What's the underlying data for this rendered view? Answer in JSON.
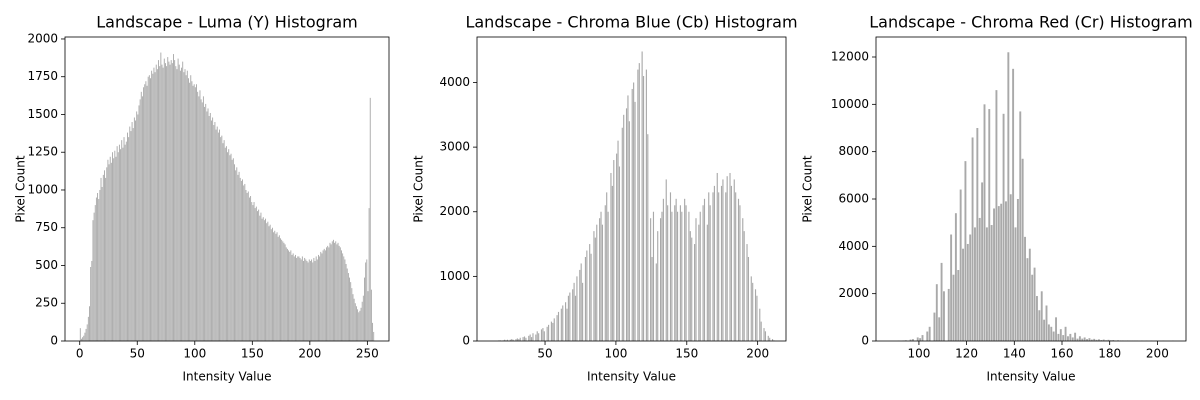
{
  "chart_data": [
    {
      "type": "histogram",
      "title": "Landscape - Luma (Y) Histogram",
      "xlabel": "Intensity Value",
      "ylabel": "Pixel Count",
      "color": "#a9a9a9",
      "xlim": [
        -12.8,
        268.8
      ],
      "ylim": [
        0,
        2013
      ],
      "xticks": [
        0,
        50,
        100,
        150,
        200,
        250
      ],
      "yticks": [
        0,
        250,
        500,
        750,
        1000,
        1250,
        1500,
        1750,
        2000
      ],
      "bins": [
        0,
        1,
        2,
        3,
        4,
        5,
        6,
        7,
        8,
        9,
        10,
        11,
        12,
        13,
        14,
        15,
        16,
        17,
        18,
        19,
        20,
        21,
        22,
        23,
        24,
        25,
        26,
        27,
        28,
        29,
        30,
        31,
        32,
        33,
        34,
        35,
        36,
        37,
        38,
        39,
        40,
        41,
        42,
        43,
        44,
        45,
        46,
        47,
        48,
        49,
        50,
        51,
        52,
        53,
        54,
        55,
        56,
        57,
        58,
        59,
        60,
        61,
        62,
        63,
        64,
        65,
        66,
        67,
        68,
        69,
        70,
        71,
        72,
        73,
        74,
        75,
        76,
        77,
        78,
        79,
        80,
        81,
        82,
        83,
        84,
        85,
        86,
        87,
        88,
        89,
        90,
        91,
        92,
        93,
        94,
        95,
        96,
        97,
        98,
        99,
        100,
        101,
        102,
        103,
        104,
        105,
        106,
        107,
        108,
        109,
        110,
        111,
        112,
        113,
        114,
        115,
        116,
        117,
        118,
        119,
        120,
        121,
        122,
        123,
        124,
        125,
        126,
        127,
        128,
        129,
        130,
        131,
        132,
        133,
        134,
        135,
        136,
        137,
        138,
        139,
        140,
        141,
        142,
        143,
        144,
        145,
        146,
        147,
        148,
        149,
        150,
        151,
        152,
        153,
        154,
        155,
        156,
        157,
        158,
        159,
        160,
        161,
        162,
        163,
        164,
        165,
        166,
        167,
        168,
        169,
        170,
        171,
        172,
        173,
        174,
        175,
        176,
        177,
        178,
        179,
        180,
        181,
        182,
        183,
        184,
        185,
        186,
        187,
        188,
        189,
        190,
        191,
        192,
        193,
        194,
        195,
        196,
        197,
        198,
        199,
        200,
        201,
        202,
        203,
        204,
        205,
        206,
        207,
        208,
        209,
        210,
        211,
        212,
        213,
        214,
        215,
        216,
        217,
        218,
        219,
        220,
        221,
        222,
        223,
        224,
        225,
        226,
        227,
        228,
        229,
        230,
        231,
        232,
        233,
        234,
        235,
        236,
        237,
        238,
        239,
        240,
        241,
        242,
        243,
        244,
        245,
        246,
        247,
        248,
        249,
        250,
        251,
        252,
        253,
        254,
        255,
        256
      ],
      "values": [
        85,
        15,
        25,
        35,
        55,
        80,
        110,
        160,
        230,
        490,
        530,
        800,
        850,
        900,
        950,
        980,
        940,
        1000,
        1080,
        1020,
        1100,
        1130,
        1080,
        1150,
        1200,
        1170,
        1220,
        1180,
        1250,
        1210,
        1260,
        1220,
        1290,
        1250,
        1300,
        1270,
        1330,
        1280,
        1350,
        1300,
        1320,
        1380,
        1350,
        1420,
        1390,
        1450,
        1410,
        1480,
        1460,
        1520,
        1500,
        1560,
        1600,
        1650,
        1620,
        1680,
        1700,
        1720,
        1690,
        1750,
        1760,
        1740,
        1790,
        1770,
        1810,
        1780,
        1830,
        1800,
        1860,
        1820,
        1910,
        1830,
        1810,
        1870,
        1840,
        1820,
        1880,
        1850,
        1830,
        1860,
        1840,
        1900,
        1860,
        1820,
        1800,
        1870,
        1830,
        1790,
        1810,
        1850,
        1780,
        1800,
        1760,
        1790,
        1740,
        1710,
        1760,
        1720,
        1690,
        1700,
        1680,
        1700,
        1650,
        1620,
        1660,
        1600,
        1580,
        1620,
        1550,
        1570,
        1520,
        1540,
        1490,
        1510,
        1460,
        1480,
        1430,
        1450,
        1400,
        1420,
        1380,
        1400,
        1350,
        1360,
        1310,
        1330,
        1280,
        1290,
        1250,
        1270,
        1230,
        1240,
        1200,
        1210,
        1170,
        1130,
        1150,
        1100,
        1120,
        1080,
        1060,
        1070,
        1030,
        1040,
        1000,
        980,
        990,
        950,
        960,
        920,
        900,
        920,
        880,
        890,
        860,
        870,
        830,
        850,
        810,
        820,
        800,
        810,
        780,
        790,
        760,
        770,
        740,
        750,
        720,
        730,
        710,
        720,
        690,
        700,
        680,
        670,
        660,
        650,
        640,
        620,
        610,
        600,
        590,
        600,
        570,
        580,
        560,
        570,
        550,
        560,
        560,
        550,
        540,
        560,
        530,
        550,
        540,
        530,
        520,
        540,
        530,
        540,
        520,
        550,
        530,
        560,
        540,
        570,
        560,
        590,
        580,
        600,
        610,
        600,
        620,
        630,
        620,
        650,
        640,
        660,
        670,
        650,
        660,
        640,
        650,
        630,
        620,
        600,
        580,
        560,
        540,
        510,
        480,
        450,
        420,
        390,
        350,
        310,
        280,
        250,
        230,
        210,
        190,
        200,
        220,
        260,
        300,
        420,
        520,
        540,
        330,
        880,
        1610,
        340,
        120,
        60
      ]
    },
    {
      "type": "histogram",
      "title": "Landscape - Chroma Blue (Cb) Histogram",
      "xlabel": "Intensity Value",
      "ylabel": "Pixel Count",
      "color": "#a9a9a9",
      "xlim": [
        2,
        220
      ],
      "ylim": [
        0,
        4704
      ],
      "xticks": [
        50,
        100,
        150,
        200
      ],
      "yticks": [
        0,
        1000,
        2000,
        3000,
        4000
      ],
      "bins": [
        12,
        13,
        14,
        15,
        16,
        17,
        18,
        19,
        20,
        21,
        22,
        23,
        24,
        25,
        26,
        27,
        28,
        29,
        30,
        31,
        32,
        33,
        34,
        35,
        36,
        37,
        38,
        39,
        40,
        41,
        42,
        43,
        44,
        45,
        46,
        47,
        48,
        49,
        50,
        51,
        52,
        53,
        54,
        55,
        56,
        57,
        58,
        59,
        60,
        61,
        62,
        63,
        64,
        65,
        66,
        67,
        68,
        69,
        70,
        71,
        72,
        73,
        74,
        75,
        76,
        77,
        78,
        79,
        80,
        81,
        82,
        83,
        84,
        85,
        86,
        87,
        88,
        89,
        90,
        91,
        92,
        93,
        94,
        95,
        96,
        97,
        98,
        99,
        100,
        101,
        102,
        103,
        104,
        105,
        106,
        107,
        108,
        109,
        110,
        111,
        112,
        113,
        114,
        115,
        116,
        117,
        118,
        119,
        120,
        121,
        122,
        123,
        124,
        125,
        126,
        127,
        128,
        129,
        130,
        131,
        132,
        133,
        134,
        135,
        136,
        137,
        138,
        139,
        140,
        141,
        142,
        143,
        144,
        145,
        146,
        147,
        148,
        149,
        150,
        151,
        152,
        153,
        154,
        155,
        156,
        157,
        158,
        159,
        160,
        161,
        162,
        163,
        164,
        165,
        166,
        167,
        168,
        169,
        170,
        171,
        172,
        173,
        174,
        175,
        176,
        177,
        178,
        179,
        180,
        181,
        182,
        183,
        184,
        185,
        186,
        187,
        188,
        189,
        190,
        191,
        192,
        193,
        194,
        195,
        196,
        197,
        198,
        199,
        200,
        201,
        202,
        203,
        204,
        205,
        206,
        207,
        208,
        209,
        210,
        211,
        212
      ],
      "values": [
        0,
        0,
        0,
        0,
        0,
        10,
        10,
        0,
        10,
        20,
        10,
        20,
        0,
        20,
        30,
        20,
        0,
        30,
        40,
        30,
        50,
        0,
        60,
        70,
        50,
        0,
        80,
        100,
        60,
        120,
        0,
        100,
        150,
        120,
        0,
        180,
        200,
        150,
        0,
        220,
        250,
        0,
        300,
        280,
        350,
        0,
        400,
        450,
        0,
        500,
        550,
        0,
        600,
        500,
        700,
        750,
        0,
        800,
        900,
        700,
        1000,
        0,
        1100,
        1200,
        900,
        0,
        1300,
        1400,
        0,
        1500,
        1350,
        0,
        1700,
        1600,
        1800,
        0,
        1900,
        2000,
        1800,
        0,
        2100,
        2300,
        2000,
        0,
        2600,
        2400,
        2800,
        0,
        2900,
        3100,
        2700,
        0,
        3300,
        3500,
        0,
        3600,
        3800,
        3400,
        0,
        3900,
        4000,
        3700,
        0,
        4200,
        4300,
        0,
        4480,
        4100,
        0,
        4200,
        3200,
        0,
        1900,
        1300,
        2000,
        0,
        1200,
        1700,
        0,
        1900,
        2000,
        2200,
        0,
        2500,
        2100,
        0,
        2300,
        2000,
        0,
        2100,
        2200,
        2000,
        0,
        2100,
        2000,
        0,
        2200,
        2100,
        0,
        2000,
        1700,
        1600,
        0,
        1500,
        1900,
        0,
        1800,
        2000,
        0,
        2100,
        2200,
        0,
        1800,
        2300,
        2100,
        0,
        2300,
        2400,
        0,
        2600,
        2300,
        0,
        2400,
        2500,
        0,
        2300,
        2550,
        0,
        2600,
        2400,
        0,
        2500,
        2300,
        0,
        2200,
        2100,
        0,
        1900,
        1700,
        0,
        1500,
        1300,
        0,
        1000,
        900,
        0,
        800,
        700,
        0,
        500,
        300,
        0,
        200,
        150,
        0,
        80,
        50,
        0,
        30,
        10
      ]
    },
    {
      "type": "histogram",
      "title": "Landscape - Chroma Red (Cr) Histogram",
      "xlabel": "Intensity Value",
      "ylabel": "Pixel Count",
      "color": "#a9a9a9",
      "xlim": [
        82,
        212
      ],
      "ylim": [
        0,
        12845
      ],
      "xticks": [
        100,
        120,
        140,
        160,
        180,
        200
      ],
      "yticks": [
        0,
        2000,
        4000,
        6000,
        8000,
        10000,
        12000
      ],
      "bins": [
        88,
        89,
        90,
        91,
        92,
        93,
        94,
        95,
        96,
        97,
        98,
        99,
        100,
        101,
        102,
        103,
        104,
        105,
        106,
        107,
        108,
        109,
        110,
        111,
        112,
        113,
        114,
        115,
        116,
        117,
        118,
        119,
        120,
        121,
        122,
        123,
        124,
        125,
        126,
        127,
        128,
        129,
        130,
        131,
        132,
        133,
        134,
        135,
        136,
        137,
        138,
        139,
        140,
        141,
        142,
        143,
        144,
        145,
        146,
        147,
        148,
        149,
        150,
        151,
        152,
        153,
        154,
        155,
        156,
        157,
        158,
        159,
        160,
        161,
        162,
        163,
        164,
        165,
        166,
        167,
        168,
        169,
        170,
        171,
        172,
        173,
        174,
        175,
        176,
        177,
        178,
        179,
        180,
        181,
        182,
        183,
        184,
        185,
        186,
        187,
        188,
        189,
        190,
        191,
        192,
        193,
        194,
        195,
        196,
        197,
        198,
        199,
        200,
        201,
        202,
        203,
        204,
        205,
        206,
        207
      ],
      "values": [
        0,
        0,
        0,
        10,
        0,
        20,
        30,
        0,
        60,
        80,
        0,
        150,
        120,
        250,
        0,
        400,
        600,
        0,
        1200,
        2400,
        1000,
        3300,
        2100,
        0,
        2200,
        4500,
        2800,
        5400,
        3000,
        6400,
        3900,
        7600,
        4100,
        4500,
        8600,
        4800,
        9000,
        5200,
        6700,
        10000,
        4800,
        9800,
        4900,
        5600,
        10600,
        5700,
        5800,
        9600,
        5900,
        12200,
        6200,
        11500,
        4800,
        6000,
        9700,
        7700,
        4400,
        3500,
        3900,
        2800,
        3100,
        1900,
        1300,
        2100,
        900,
        1500,
        700,
        600,
        400,
        1000,
        300,
        500,
        250,
        600,
        200,
        300,
        150,
        350,
        100,
        200,
        100,
        150,
        80,
        120,
        60,
        90,
        50,
        70,
        40,
        60,
        30,
        50,
        30,
        40,
        20,
        30,
        20,
        20,
        10,
        20,
        10,
        10,
        10,
        10,
        0,
        10,
        0,
        10,
        0,
        10,
        0,
        10,
        0,
        0,
        10,
        0,
        0,
        0,
        10
      ]
    }
  ]
}
